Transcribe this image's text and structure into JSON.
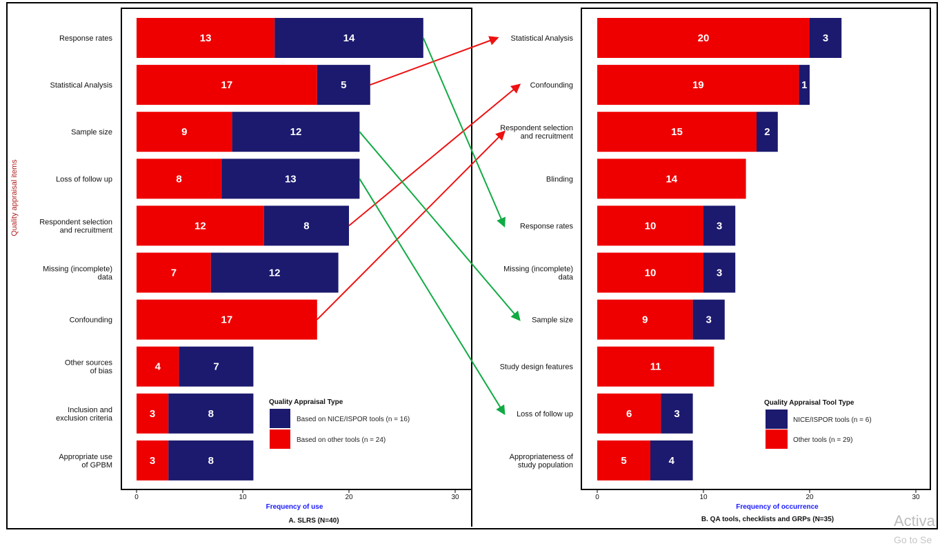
{
  "colors": {
    "other": "#ee0000",
    "nice": "#1c1a6e",
    "arrow_up": "#ee1111",
    "arrow_down": "#11aa44",
    "ylabel": "#b22222",
    "xlabel": "#1a1aff"
  },
  "chart_data": [
    {
      "type": "bar",
      "orientation": "horizontal",
      "stacked": true,
      "categories": [
        "Response rates",
        "Statistical Analysis",
        "Sample size",
        "Loss of follow up",
        "Respondent selection and recruitment",
        "Missing (incomplete) data",
        "Confounding",
        "Other sources of bias",
        "Inclusion and exclusion criteria",
        "Appropriate use of GPBM"
      ],
      "category_lines": [
        [
          "Response rates"
        ],
        [
          "Statistical Analysis"
        ],
        [
          "Sample size"
        ],
        [
          "Loss of follow up"
        ],
        [
          "Respondent selection",
          "and recruitment"
        ],
        [
          "Missing (incomplete)",
          "data"
        ],
        [
          "Confounding"
        ],
        [
          "Other sources",
          "of bias"
        ],
        [
          "Inclusion and",
          "exclusion criteria"
        ],
        [
          "Appropriate use",
          "of GPBM"
        ]
      ],
      "series": [
        {
          "name": "Based on other tools (n = 24)",
          "values": [
            13,
            17,
            9,
            8,
            12,
            7,
            17,
            4,
            3,
            3
          ]
        },
        {
          "name": "Based on NICE/ISPOR tools (n = 16)",
          "values": [
            14,
            5,
            12,
            13,
            8,
            12,
            0,
            7,
            8,
            8
          ]
        }
      ],
      "xlabel": "Frequency of use",
      "ylabel": "Quality appraisal items",
      "caption": "A. SLRS (N=40)",
      "legend_title": "Quality Appraisal Type",
      "xlim": [
        0,
        32
      ],
      "xticks": [
        0,
        10,
        20,
        30
      ]
    },
    {
      "type": "bar",
      "orientation": "horizontal",
      "stacked": true,
      "categories": [
        "Statistical Analysis",
        "Confounding",
        "Respondent selection and recruitment",
        "Blinding",
        "Response rates",
        "Missing (incomplete) data",
        "Sample size",
        "Study design features",
        "Loss of follow up",
        "Appropriateness of study population"
      ],
      "category_lines": [
        [
          "Statistical Analysis"
        ],
        [
          "Confounding"
        ],
        [
          "Respondent selection",
          "and recruitment"
        ],
        [
          "Blinding"
        ],
        [
          "Response rates"
        ],
        [
          "Missing (incomplete)",
          "data"
        ],
        [
          "Sample size"
        ],
        [
          "Study design features"
        ],
        [
          "Loss of follow up"
        ],
        [
          "Appropriateness of",
          "study population"
        ]
      ],
      "series": [
        {
          "name": "Other tools (n = 29)",
          "values": [
            20,
            19,
            15,
            14,
            10,
            10,
            9,
            11,
            6,
            5
          ]
        },
        {
          "name": "NICE/ISPOR tools (n = 6)",
          "values": [
            3,
            1,
            2,
            0,
            3,
            3,
            3,
            0,
            3,
            4
          ]
        }
      ],
      "xlabel": "Frequency of occurrence",
      "caption": "B. QA tools, checklists and GRPs (N=35)",
      "legend_title": "Quality Appraisal Tool Type",
      "xlim": [
        0,
        31
      ],
      "xticks": [
        0,
        10,
        20,
        30
      ]
    }
  ],
  "rank_arrows": [
    {
      "from": "Statistical Analysis",
      "to": "Statistical Analysis",
      "direction": "up"
    },
    {
      "from": "Respondent selection and recruitment",
      "to": "Confounding",
      "direction": "up"
    },
    {
      "from": "Confounding",
      "to": "Respondent selection and recruitment",
      "direction": "up"
    },
    {
      "from": "Response rates",
      "to": "Response rates",
      "direction": "down"
    },
    {
      "from": "Sample size",
      "to": "Sample size",
      "direction": "down"
    },
    {
      "from": "Loss of follow up",
      "to": "Loss of follow up",
      "direction": "down"
    }
  ],
  "watermark": {
    "line1": "Activa",
    "line2": "Go to Se"
  }
}
